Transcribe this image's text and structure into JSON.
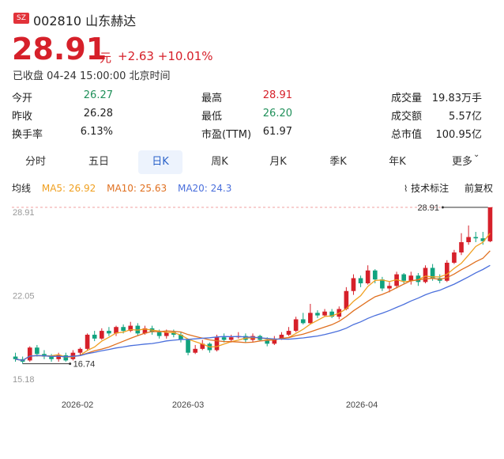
{
  "header": {
    "exchange_badge": "SZ",
    "code": "002810",
    "name": "山东赫达"
  },
  "price": {
    "value": "28.91",
    "currency": "元",
    "change": "+2.63",
    "change_pct": "+10.01%",
    "status": "已收盘 04-24 15:00:00 北京时间"
  },
  "quote": [
    [
      {
        "label": "今开",
        "value": "26.27",
        "color": "#20905a"
      },
      {
        "label": "最高",
        "value": "28.91",
        "color": "#d6202a"
      },
      {
        "label": "成交量",
        "value": "19.83万手",
        "color": "#222"
      }
    ],
    [
      {
        "label": "昨收",
        "value": "26.28",
        "color": "#222"
      },
      {
        "label": "最低",
        "value": "26.20",
        "color": "#20905a"
      },
      {
        "label": "成交额",
        "value": "5.57亿",
        "color": "#222"
      }
    ],
    [
      {
        "label": "换手率",
        "value": "6.13%",
        "color": "#222"
      },
      {
        "label": "市盈(TTM)",
        "value": "61.97",
        "color": "#222"
      },
      {
        "label": "总市值",
        "value": "100.95亿",
        "color": "#222"
      }
    ]
  ],
  "tabs": [
    "分时",
    "五日",
    "日K",
    "周K",
    "月K",
    "季K",
    "年K",
    "更多"
  ],
  "active_tab": 2,
  "ma": {
    "title": "均线",
    "ma5": "MA5: 26.92",
    "ma10": "MA10: 25.63",
    "ma20": "MA20: 24.3",
    "ma5_color": "#f0a020",
    "ma10_color": "#e07020",
    "ma20_color": "#4a6fdc"
  },
  "tools": {
    "indicators": "技术标注",
    "adjust": "前复权"
  },
  "chart_data": {
    "type": "candlestick",
    "y_labels": [
      "28.91",
      "22.05",
      "15.18"
    ],
    "ylim": [
      15.18,
      28.91
    ],
    "x_labels": [
      "2026-02",
      "2026-03",
      "2026-04"
    ],
    "high_marker": "28.91",
    "low_marker": "16.74",
    "candles": [
      [
        17.3,
        17.1,
        17.6,
        16.9
      ],
      [
        17.1,
        16.9,
        17.3,
        16.74
      ],
      [
        17.0,
        18.0,
        18.1,
        16.9
      ],
      [
        18.0,
        17.5,
        18.2,
        17.3
      ],
      [
        17.5,
        17.3,
        17.8,
        17.1
      ],
      [
        17.3,
        17.1,
        17.5,
        16.9
      ],
      [
        17.1,
        17.4,
        17.6,
        16.9
      ],
      [
        17.4,
        17.0,
        17.6,
        16.9
      ],
      [
        17.1,
        17.6,
        17.8,
        17.0
      ],
      [
        17.6,
        17.9,
        18.0,
        17.4
      ],
      [
        17.9,
        19.0,
        19.1,
        17.8
      ],
      [
        19.0,
        18.7,
        19.3,
        18.5
      ],
      [
        18.7,
        19.3,
        19.5,
        18.6
      ],
      [
        19.3,
        19.1,
        19.6,
        18.9
      ],
      [
        19.1,
        19.6,
        19.7,
        18.9
      ],
      [
        19.6,
        19.3,
        19.8,
        19.1
      ],
      [
        19.3,
        19.7,
        20.0,
        19.2
      ],
      [
        19.7,
        19.1,
        19.9,
        18.9
      ],
      [
        19.1,
        19.5,
        19.7,
        19.0
      ],
      [
        19.5,
        19.2,
        19.7,
        19.0
      ],
      [
        19.2,
        18.9,
        19.4,
        18.7
      ],
      [
        18.9,
        19.2,
        19.4,
        18.7
      ],
      [
        19.2,
        19.0,
        19.4,
        18.8
      ],
      [
        19.0,
        18.6,
        19.2,
        18.4
      ],
      [
        18.6,
        17.6,
        18.7,
        17.4
      ],
      [
        17.6,
        17.9,
        18.2,
        17.5
      ],
      [
        17.9,
        18.3,
        18.6,
        17.8
      ],
      [
        18.3,
        17.8,
        18.4,
        17.6
      ],
      [
        17.8,
        18.8,
        19.0,
        17.7
      ],
      [
        18.8,
        18.6,
        19.1,
        18.4
      ],
      [
        18.6,
        18.8,
        19.0,
        18.4
      ],
      [
        18.8,
        18.9,
        19.2,
        18.7
      ],
      [
        18.9,
        18.6,
        19.1,
        18.4
      ],
      [
        18.6,
        18.9,
        19.1,
        18.4
      ],
      [
        18.9,
        18.6,
        19.0,
        18.5
      ],
      [
        18.6,
        18.3,
        18.8,
        18.1
      ],
      [
        18.3,
        18.7,
        18.9,
        18.2
      ],
      [
        18.7,
        19.0,
        19.2,
        18.6
      ],
      [
        19.0,
        19.3,
        19.6,
        18.9
      ],
      [
        19.3,
        20.2,
        20.4,
        19.2
      ],
      [
        20.2,
        19.9,
        20.7,
        19.8
      ],
      [
        19.9,
        20.7,
        21.4,
        19.8
      ],
      [
        20.7,
        20.5,
        20.9,
        20.3
      ],
      [
        20.5,
        20.8,
        21.0,
        20.4
      ],
      [
        20.8,
        20.4,
        21.0,
        20.3
      ],
      [
        20.4,
        21.0,
        21.2,
        20.2
      ],
      [
        21.0,
        22.4,
        22.7,
        20.9
      ],
      [
        22.4,
        23.4,
        23.7,
        22.1
      ],
      [
        23.4,
        23.0,
        23.6,
        22.7
      ],
      [
        23.0,
        24.0,
        24.4,
        22.9
      ],
      [
        24.0,
        23.3,
        24.1,
        23.0
      ],
      [
        23.3,
        22.6,
        23.5,
        22.4
      ],
      [
        22.6,
        22.8,
        23.1,
        22.3
      ],
      [
        22.8,
        23.7,
        23.9,
        22.6
      ],
      [
        23.7,
        23.2,
        23.8,
        23.0
      ],
      [
        23.2,
        23.6,
        23.9,
        22.9
      ],
      [
        23.6,
        23.1,
        23.8,
        22.8
      ],
      [
        23.1,
        24.2,
        24.4,
        23.0
      ],
      [
        24.2,
        23.4,
        24.5,
        23.2
      ],
      [
        23.4,
        23.2,
        23.7,
        23.0
      ],
      [
        23.2,
        24.6,
        24.8,
        23.1
      ],
      [
        24.6,
        25.4,
        25.6,
        24.5
      ],
      [
        25.4,
        26.2,
        26.9,
        25.2
      ],
      [
        26.2,
        26.6,
        27.5,
        26.0
      ],
      [
        26.6,
        26.5,
        27.0,
        26.2
      ],
      [
        26.5,
        26.28,
        27.0,
        26.0
      ],
      [
        26.27,
        28.91,
        28.91,
        26.2
      ]
    ]
  }
}
